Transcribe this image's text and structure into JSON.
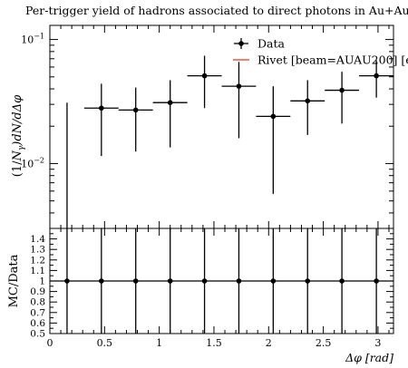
{
  "chart_data": [
    {
      "type": "scatter",
      "panel": "main",
      "title": "Per-trigger yield of hadrons associated to direct photons in Au+Au",
      "xlabel": "",
      "ylabel": "(1/N_γ) dN/dΔφ",
      "ylabel_parts": {
        "prefix": "(1/",
        "n": "N",
        "sub": "γ",
        "suffix": ")dN/dΔφ"
      },
      "yscale": "log",
      "xlim": [
        0,
        3.14159
      ],
      "ylim": [
        0.003,
        0.13
      ],
      "yticks": [
        {
          "value": 0.1,
          "base": "10",
          "exp": "−1"
        },
        {
          "value": 0.01,
          "base": "10",
          "exp": "−2"
        }
      ],
      "legend": {
        "placement": "top-right",
        "entries": [
          {
            "label": "Data",
            "marker": "point-errorbar",
            "color": "#000000"
          },
          {
            "label": "Rivet [beam=AUAU200] [e",
            "marker": "line",
            "color": "#e8593c"
          }
        ]
      },
      "series": [
        {
          "name": "Data",
          "color": "#000000",
          "points": [
            {
              "x": 0.157,
              "xlow": 0.0,
              "xhigh": 0.314,
              "y": 0.0025,
              "ylow": 0.0005,
              "yhigh": 0.031
            },
            {
              "x": 0.471,
              "xlow": 0.314,
              "xhigh": 0.628,
              "y": 0.028,
              "ylow": 0.0115,
              "yhigh": 0.044
            },
            {
              "x": 0.785,
              "xlow": 0.628,
              "xhigh": 0.942,
              "y": 0.027,
              "ylow": 0.0125,
              "yhigh": 0.041
            },
            {
              "x": 1.1,
              "xlow": 0.942,
              "xhigh": 1.257,
              "y": 0.031,
              "ylow": 0.0135,
              "yhigh": 0.047
            },
            {
              "x": 1.414,
              "xlow": 1.257,
              "xhigh": 1.571,
              "y": 0.051,
              "ylow": 0.028,
              "yhigh": 0.074
            },
            {
              "x": 1.728,
              "xlow": 1.571,
              "xhigh": 1.885,
              "y": 0.042,
              "ylow": 0.016,
              "yhigh": 0.066
            },
            {
              "x": 2.042,
              "xlow": 1.885,
              "xhigh": 2.199,
              "y": 0.024,
              "ylow": 0.0057,
              "yhigh": 0.042
            },
            {
              "x": 2.356,
              "xlow": 2.199,
              "xhigh": 2.513,
              "y": 0.032,
              "ylow": 0.017,
              "yhigh": 0.047
            },
            {
              "x": 2.67,
              "xlow": 2.513,
              "xhigh": 2.827,
              "y": 0.039,
              "ylow": 0.021,
              "yhigh": 0.055
            },
            {
              "x": 2.985,
              "xlow": 2.827,
              "xhigh": 3.142,
              "y": 0.051,
              "ylow": 0.034,
              "yhigh": 0.068
            }
          ]
        }
      ]
    },
    {
      "type": "scatter",
      "panel": "ratio",
      "xlabel": "Δφ [rad]",
      "ylabel": "MC/Data",
      "xlim": [
        0,
        3.14159
      ],
      "ylim": [
        0.5,
        1.5
      ],
      "xticks": [
        0,
        0.5,
        1,
        1.5,
        2,
        2.5,
        3
      ],
      "xtick_labels": [
        "0",
        "0.5",
        "1",
        "1.5",
        "2",
        "2.5",
        "3"
      ],
      "yticks": [
        0.5,
        0.6,
        0.7,
        0.8,
        0.9,
        1,
        1.1,
        1.2,
        1.3,
        1.4
      ],
      "ytick_labels": [
        "0.5",
        "0.6",
        "0.7",
        "0.8",
        "0.9",
        "1",
        "1.1",
        "1.2",
        "1.3",
        "1.4"
      ],
      "series": [
        {
          "name": "Data",
          "color": "#000000",
          "points": [
            {
              "x": 0.157,
              "y": 1,
              "ylow": 0.5,
              "yhigh": 1.5
            },
            {
              "x": 0.471,
              "y": 1,
              "ylow": 0.5,
              "yhigh": 1.5
            },
            {
              "x": 0.785,
              "y": 1,
              "ylow": 0.5,
              "yhigh": 1.5
            },
            {
              "x": 1.1,
              "y": 1,
              "ylow": 0.5,
              "yhigh": 1.5
            },
            {
              "x": 1.414,
              "y": 1,
              "ylow": 0.5,
              "yhigh": 1.5
            },
            {
              "x": 1.728,
              "y": 1,
              "ylow": 0.5,
              "yhigh": 1.5
            },
            {
              "x": 2.042,
              "y": 1,
              "ylow": 0.5,
              "yhigh": 1.5
            },
            {
              "x": 2.356,
              "y": 1,
              "ylow": 0.5,
              "yhigh": 1.5
            },
            {
              "x": 2.67,
              "y": 1,
              "ylow": 0.5,
              "yhigh": 1.5
            },
            {
              "x": 2.985,
              "y": 1,
              "ylow": 0.5,
              "yhigh": 1.5
            }
          ]
        }
      ]
    }
  ]
}
